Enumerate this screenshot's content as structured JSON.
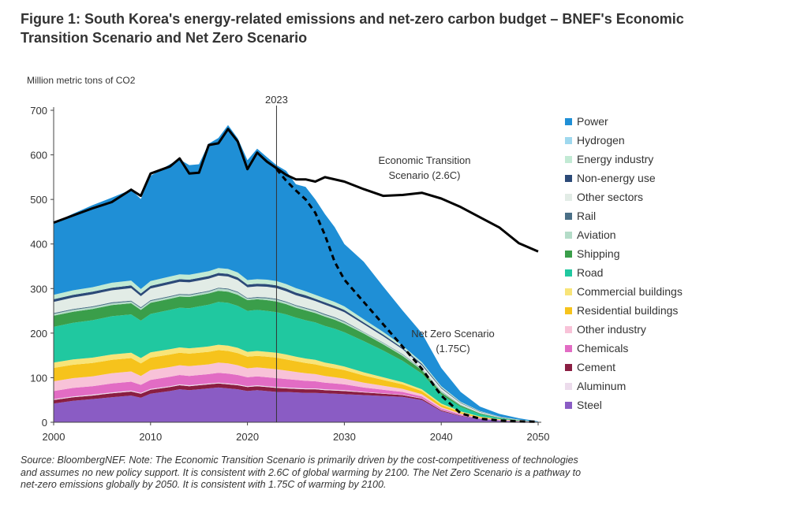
{
  "title": {
    "line1": "Figure 1: South Korea's energy-related emissions and net-zero carbon budget – BNEF's Economic",
    "line2": "Transition Scenario and Net Zero Scenario"
  },
  "source_note": {
    "line1": "Source: BloombergNEF. Note: The Economic Transition Scenario is primarily driven by the cost-competitiveness of technologies",
    "line2": "and assumes no new policy support. It is consistent with 2.6C of global warming by 2100. The Net Zero Scenario is a pathway to",
    "line3": "net-zero emissions globally by 2050. It is consistent with 1.75C of warming by 2100."
  },
  "chart_data": {
    "type": "area",
    "ylabel": "Million  metric tons of CO2",
    "xlim": [
      2000,
      2050
    ],
    "ylim": [
      0,
      700
    ],
    "x_ticks": [
      2000,
      2010,
      2020,
      2030,
      2040,
      2050
    ],
    "y_ticks": [
      0,
      100,
      200,
      300,
      400,
      500,
      600,
      700
    ],
    "marker_line": {
      "x": 2023,
      "label": "2023"
    },
    "annotations": [
      {
        "text_line1": "Economic Transition",
        "text_line2": "Scenario (2.6C)"
      },
      {
        "text_line1": "Net Zero Scenario",
        "text_line2": "(1.75C)"
      }
    ],
    "legend_placement": "right",
    "legend": [
      {
        "name": "Power",
        "color": "#1f8fd6"
      },
      {
        "name": "Hydrogen",
        "color": "#9fd8ee"
      },
      {
        "name": "Energy industry",
        "color": "#c2ead4"
      },
      {
        "name": "Non-energy use",
        "color": "#2c4a78"
      },
      {
        "name": "Other sectors",
        "color": "#e2ece6"
      },
      {
        "name": "Rail",
        "color": "#4a6f86"
      },
      {
        "name": "Aviation",
        "color": "#b4dcc8"
      },
      {
        "name": "Shipping",
        "color": "#3a9e4a"
      },
      {
        "name": "Road",
        "color": "#20c8a0"
      },
      {
        "name": "Commercial buildings",
        "color": "#f8e478"
      },
      {
        "name": "Residential buildings",
        "color": "#f6c31c"
      },
      {
        "name": "Other industry",
        "color": "#f8c2d8"
      },
      {
        "name": "Chemicals",
        "color": "#e26cc4"
      },
      {
        "name": "Cement",
        "color": "#8a1e42"
      },
      {
        "name": "Aluminum",
        "color": "#ecdcec"
      },
      {
        "name": "Steel",
        "color": "#8a5cc4"
      }
    ],
    "x": [
      2000,
      2002,
      2004,
      2006,
      2008,
      2009,
      2010,
      2012,
      2013,
      2014,
      2015,
      2016,
      2017,
      2018,
      2019,
      2020,
      2021,
      2022,
      2023,
      2024,
      2025,
      2026,
      2027,
      2028,
      2029,
      2030,
      2032,
      2034,
      2036,
      2038,
      2040,
      2042,
      2044,
      2046,
      2048,
      2050
    ],
    "stacked_series": [
      {
        "name": "Steel",
        "values": [
          42,
          48,
          52,
          56,
          60,
          55,
          64,
          70,
          74,
          72,
          74,
          76,
          78,
          76,
          74,
          70,
          72,
          70,
          68,
          68,
          67,
          66,
          66,
          65,
          64,
          63,
          61,
          59,
          57,
          50,
          25,
          14,
          7,
          4,
          2,
          1
        ]
      },
      {
        "name": "Cement",
        "values": [
          8,
          8,
          8,
          9,
          9,
          9,
          9,
          9,
          9,
          9,
          9,
          9,
          9,
          9,
          9,
          9,
          9,
          9,
          9,
          8,
          8,
          8,
          8,
          7,
          7,
          7,
          6,
          5,
          4,
          3,
          2,
          1,
          0.5,
          0.3,
          0.1,
          0
        ]
      },
      {
        "name": "Aluminum",
        "values": [
          2,
          2,
          2,
          2,
          2,
          2,
          2,
          2,
          2,
          2,
          2,
          2,
          2,
          2,
          2,
          2,
          2,
          2,
          2,
          2,
          2,
          2,
          2,
          2,
          2,
          2,
          1,
          1,
          1,
          1,
          1,
          0.5,
          0.3,
          0.2,
          0.1,
          0
        ]
      },
      {
        "name": "Chemicals",
        "values": [
          18,
          19,
          19,
          20,
          20,
          18,
          20,
          21,
          21,
          21,
          21,
          21,
          22,
          22,
          21,
          20,
          20,
          20,
          20,
          19,
          18,
          17,
          16,
          15,
          14,
          13,
          10,
          8,
          6,
          4,
          3,
          2,
          1,
          0.5,
          0.2,
          0
        ]
      },
      {
        "name": "Other industry",
        "values": [
          22,
          22,
          22,
          23,
          23,
          20,
          22,
          22,
          22,
          22,
          22,
          22,
          23,
          23,
          22,
          20,
          20,
          20,
          20,
          19,
          18,
          17,
          16,
          15,
          14,
          13,
          11,
          9,
          7,
          5,
          3,
          2,
          1,
          0.5,
          0.2,
          0
        ]
      },
      {
        "name": "Residential buildings",
        "values": [
          30,
          30,
          30,
          30,
          30,
          28,
          28,
          28,
          28,
          28,
          28,
          28,
          28,
          28,
          27,
          26,
          26,
          26,
          26,
          25,
          24,
          23,
          22,
          21,
          20,
          19,
          16,
          13,
          10,
          7,
          5,
          3,
          2,
          1,
          0.5,
          0
        ]
      },
      {
        "name": "Commercial buildings",
        "values": [
          12,
          12,
          12,
          12,
          12,
          12,
          12,
          12,
          12,
          12,
          12,
          12,
          12,
          12,
          12,
          11,
          11,
          11,
          11,
          11,
          10,
          10,
          10,
          9,
          9,
          8,
          7,
          6,
          5,
          4,
          3,
          2,
          1,
          0.5,
          0.2,
          0
        ]
      },
      {
        "name": "Road",
        "values": [
          80,
          82,
          84,
          86,
          86,
          84,
          86,
          88,
          89,
          90,
          92,
          94,
          96,
          96,
          94,
          92,
          92,
          92,
          91,
          90,
          88,
          86,
          84,
          82,
          80,
          77,
          70,
          60,
          48,
          35,
          20,
          10,
          5,
          2,
          1,
          0
        ]
      },
      {
        "name": "Shipping",
        "values": [
          25,
          25,
          25,
          25,
          25,
          24,
          25,
          25,
          25,
          25,
          25,
          25,
          25,
          25,
          25,
          24,
          24,
          24,
          24,
          23,
          22,
          22,
          21,
          21,
          20,
          19,
          17,
          14,
          11,
          8,
          5,
          3,
          2,
          1,
          0.5,
          0
        ]
      },
      {
        "name": "Aviation",
        "values": [
          4,
          4,
          4,
          4,
          4,
          4,
          4,
          4,
          4,
          4,
          4,
          4,
          5,
          5,
          5,
          3,
          3,
          4,
          4,
          4,
          4,
          4,
          4,
          4,
          4,
          4,
          3,
          3,
          3,
          2,
          2,
          1,
          1,
          0.5,
          0.2,
          0
        ]
      },
      {
        "name": "Rail",
        "values": [
          2,
          2,
          2,
          2,
          2,
          2,
          2,
          2,
          2,
          2,
          2,
          2,
          2,
          2,
          2,
          2,
          2,
          2,
          2,
          2,
          2,
          2,
          2,
          2,
          2,
          2,
          1,
          1,
          1,
          1,
          1,
          0.5,
          0.3,
          0.2,
          0.1,
          0
        ]
      },
      {
        "name": "Other sectors",
        "values": [
          25,
          26,
          27,
          27,
          28,
          25,
          26,
          27,
          27,
          27,
          27,
          27,
          27,
          27,
          26,
          24,
          24,
          24,
          24,
          23,
          22,
          22,
          21,
          21,
          20,
          20,
          17,
          14,
          11,
          8,
          6,
          4,
          2,
          1,
          0.5,
          0
        ]
      },
      {
        "name": "Non-energy use",
        "values": [
          6,
          6,
          6,
          6,
          6,
          6,
          6,
          6,
          6,
          6,
          6,
          6,
          6,
          6,
          6,
          6,
          6,
          6,
          6,
          6,
          6,
          6,
          5,
          5,
          5,
          5,
          4,
          4,
          3,
          3,
          2,
          1,
          1,
          0.5,
          0.2,
          0
        ]
      },
      {
        "name": "Energy industry",
        "values": [
          10,
          10,
          10,
          11,
          11,
          10,
          11,
          11,
          11,
          11,
          11,
          11,
          11,
          11,
          11,
          10,
          10,
          10,
          10,
          10,
          10,
          9,
          9,
          9,
          9,
          8,
          7,
          6,
          5,
          4,
          3,
          2,
          1,
          0.5,
          0.2,
          0
        ]
      },
      {
        "name": "Hydrogen",
        "values": [
          0,
          0,
          0,
          0,
          0,
          0,
          0,
          0,
          0,
          0,
          0,
          0,
          0,
          0,
          0,
          0,
          0,
          0,
          0,
          0,
          0,
          0,
          0,
          0,
          0,
          0,
          0,
          0,
          0,
          0,
          0,
          0,
          0,
          0,
          0,
          0
        ]
      },
      {
        "name": "Power",
        "values": [
          162,
          172,
          184,
          191,
          204,
          202,
          236,
          252,
          258,
          246,
          244,
          286,
          292,
          323,
          301,
          269,
          293,
          275,
          260,
          254,
          233,
          234,
          214,
          189,
          168,
          140,
          129,
          102,
          79,
          65,
          41,
          22,
          10,
          6,
          3,
          1
        ]
      }
    ],
    "line_series": [
      {
        "name": "Economic Transition Scenario (2.6C)",
        "style": "solid",
        "x": [
          2000,
          2002,
          2004,
          2006,
          2008,
          2009,
          2010,
          2012,
          2013,
          2014,
          2015,
          2016,
          2017,
          2018,
          2019,
          2020,
          2021,
          2022,
          2023,
          2024,
          2025,
          2026,
          2027,
          2028,
          2030,
          2032,
          2034,
          2036,
          2038,
          2040,
          2042,
          2044,
          2046,
          2048,
          2050
        ],
        "values": [
          448,
          464,
          480,
          494,
          522,
          508,
          558,
          574,
          592,
          558,
          560,
          622,
          626,
          658,
          630,
          568,
          605,
          585,
          570,
          555,
          545,
          545,
          540,
          550,
          540,
          523,
          508,
          510,
          515,
          502,
          483,
          460,
          437,
          402,
          383
        ]
      },
      {
        "name": "Net Zero Scenario (1.75C)",
        "style": "dashed",
        "x": [
          2023,
          2024,
          2025,
          2026,
          2027,
          2028,
          2029,
          2030,
          2032,
          2034,
          2036,
          2038,
          2040,
          2042,
          2044,
          2046,
          2048,
          2050
        ],
        "values": [
          568,
          542,
          520,
          500,
          470,
          420,
          360,
          320,
          270,
          220,
          170,
          120,
          60,
          20,
          8,
          4,
          2,
          1
        ]
      }
    ]
  }
}
